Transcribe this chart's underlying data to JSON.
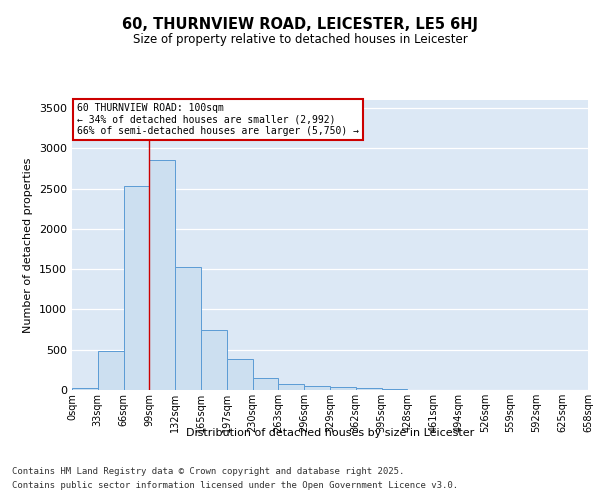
{
  "title": "60, THURNVIEW ROAD, LEICESTER, LE5 6HJ",
  "subtitle": "Size of property relative to detached houses in Leicester",
  "xlabel": "Distribution of detached houses by size in Leicester",
  "ylabel": "Number of detached properties",
  "bar_values": [
    20,
    490,
    2530,
    2860,
    1530,
    750,
    390,
    150,
    80,
    45,
    40,
    20,
    10,
    5,
    3,
    2,
    2,
    1,
    1,
    1
  ],
  "bar_labels": [
    "0sqm",
    "33sqm",
    "66sqm",
    "99sqm",
    "132sqm",
    "165sqm",
    "197sqm",
    "230sqm",
    "263sqm",
    "296sqm",
    "329sqm",
    "362sqm",
    "395sqm",
    "428sqm",
    "461sqm",
    "494sqm",
    "526sqm",
    "559sqm",
    "592sqm",
    "625sqm",
    "658sqm"
  ],
  "bar_color": "#ccdff0",
  "bar_edge_color": "#5b9bd5",
  "property_line_x": 3,
  "property_line_color": "#cc0000",
  "annotation_title": "60 THURNVIEW ROAD: 100sqm",
  "annotation_line1": "← 34% of detached houses are smaller (2,992)",
  "annotation_line2": "66% of semi-detached houses are larger (5,750) →",
  "annotation_box_color": "#cc0000",
  "ylim": [
    0,
    3600
  ],
  "yticks": [
    0,
    500,
    1000,
    1500,
    2000,
    2500,
    3000,
    3500
  ],
  "background_color": "#dce8f5",
  "footer_line1": "Contains HM Land Registry data © Crown copyright and database right 2025.",
  "footer_line2": "Contains public sector information licensed under the Open Government Licence v3.0."
}
